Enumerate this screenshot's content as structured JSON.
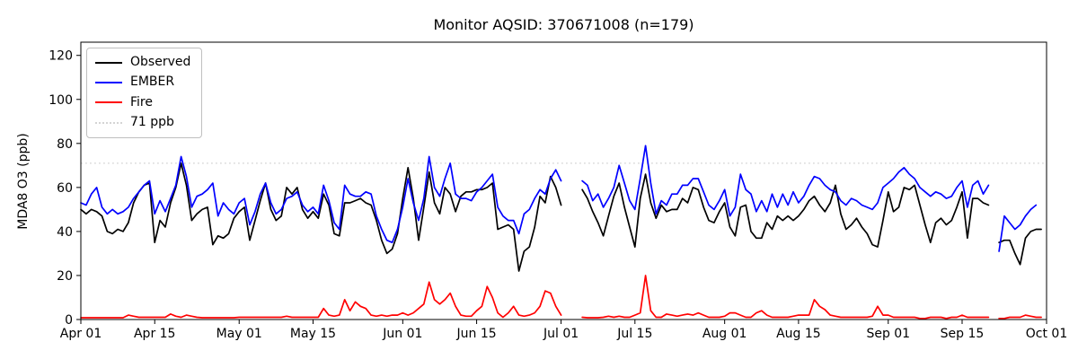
{
  "chart_data": {
    "type": "line",
    "title": "Monitor AQSID: 370671008 (n=179)",
    "ylabel": "MDA8 O3 (ppb)",
    "xlabel": "",
    "grid": false,
    "legend_position": "upper left",
    "ylim": [
      0,
      126
    ],
    "y_ticks": [
      0,
      20,
      40,
      60,
      80,
      100,
      120
    ],
    "x_start_label": "Apr 01",
    "x_end_label": "Oct 01",
    "days_total": 183,
    "x_ticks": [
      {
        "day": 0,
        "label": "Apr 01"
      },
      {
        "day": 14,
        "label": "Apr 15"
      },
      {
        "day": 30,
        "label": "May 01"
      },
      {
        "day": 44,
        "label": "May 15"
      },
      {
        "day": 61,
        "label": "Jun 01"
      },
      {
        "day": 75,
        "label": "Jun 15"
      },
      {
        "day": 91,
        "label": "Jul 01"
      },
      {
        "day": 105,
        "label": "Jul 15"
      },
      {
        "day": 122,
        "label": "Aug 01"
      },
      {
        "day": 136,
        "label": "Aug 15"
      },
      {
        "day": 153,
        "label": "Sep 01"
      },
      {
        "day": 167,
        "label": "Sep 15"
      },
      {
        "day": 183,
        "label": "Oct 01"
      }
    ],
    "threshold": {
      "value": 71,
      "label": "71 ppb",
      "color": "#d4d4d4",
      "style": "dotted"
    },
    "missing_days": [
      "Jul 02",
      "Jul 03",
      "Jul 04",
      "Sep 21"
    ],
    "series": [
      {
        "key": "observed",
        "name": "Observed",
        "color": "#000000",
        "values": [
          50,
          48,
          50,
          49,
          47,
          40,
          39,
          41,
          40,
          44,
          53,
          58,
          61,
          62,
          35,
          45,
          42,
          53,
          60,
          71,
          61,
          45,
          48,
          50,
          51,
          34,
          38,
          37,
          39,
          46,
          49,
          51,
          36,
          45,
          54,
          62,
          50,
          45,
          47,
          60,
          57,
          60,
          50,
          46,
          49,
          46,
          57,
          52,
          39,
          38,
          53,
          53,
          54,
          55,
          53,
          52,
          45,
          36,
          30,
          32,
          39,
          55,
          69,
          55,
          36,
          51,
          67,
          53,
          48,
          60,
          57,
          49,
          56,
          58,
          58,
          59,
          59,
          60,
          62,
          41,
          42,
          43,
          41,
          22,
          31,
          33,
          42,
          56,
          53,
          65,
          60,
          52,
          null,
          null,
          null,
          59,
          55,
          49,
          44,
          38,
          47,
          56,
          62,
          51,
          42,
          33,
          55,
          66,
          53,
          46,
          52,
          49,
          50,
          50,
          55,
          53,
          60,
          59,
          51,
          45,
          44,
          49,
          53,
          42,
          38,
          51,
          52,
          40,
          37,
          37,
          44,
          41,
          47,
          45,
          47,
          45,
          47,
          50,
          54,
          56,
          52,
          49,
          53,
          61,
          48,
          41,
          43,
          46,
          42,
          39,
          34,
          33,
          45,
          58,
          49,
          51,
          60,
          59,
          61,
          52,
          43,
          35,
          44,
          46,
          43,
          45,
          51,
          58,
          37,
          55,
          55,
          53,
          52,
          null,
          35,
          36,
          36,
          30,
          25,
          37,
          40,
          41,
          41
        ]
      },
      {
        "key": "ember",
        "name": "EMBER",
        "color": "#0000ff",
        "values": [
          53,
          52,
          57,
          60,
          51,
          48,
          50,
          48,
          49,
          51,
          55,
          58,
          61,
          63,
          48,
          54,
          49,
          55,
          61,
          74,
          65,
          51,
          56,
          57,
          59,
          62,
          47,
          53,
          50,
          48,
          53,
          55,
          43,
          49,
          57,
          62,
          53,
          48,
          50,
          55,
          56,
          58,
          52,
          49,
          51,
          48,
          61,
          54,
          44,
          41,
          61,
          57,
          56,
          56,
          58,
          57,
          47,
          41,
          36,
          35,
          41,
          51,
          64,
          53,
          45,
          55,
          74,
          60,
          56,
          64,
          71,
          57,
          55,
          55,
          54,
          58,
          60,
          63,
          66,
          51,
          47,
          45,
          45,
          39,
          48,
          50,
          55,
          59,
          57,
          64,
          68,
          63,
          null,
          null,
          null,
          63,
          61,
          54,
          57,
          51,
          55,
          60,
          70,
          62,
          54,
          50,
          64,
          79,
          62,
          48,
          54,
          52,
          57,
          57,
          61,
          61,
          64,
          64,
          58,
          52,
          50,
          54,
          59,
          47,
          51,
          66,
          59,
          57,
          49,
          54,
          49,
          57,
          51,
          57,
          52,
          58,
          53,
          56,
          61,
          65,
          64,
          61,
          59,
          58,
          54,
          52,
          55,
          54,
          52,
          51,
          50,
          53,
          60,
          62,
          64,
          67,
          69,
          66,
          64,
          60,
          58,
          56,
          58,
          57,
          55,
          56,
          60,
          63,
          51,
          61,
          63,
          57,
          61,
          null,
          31,
          47,
          44,
          41,
          43,
          47,
          50,
          52,
          null
        ]
      },
      {
        "key": "fire",
        "name": "Fire",
        "color": "#ff0000",
        "values": [
          0.8,
          0.8,
          0.8,
          0.8,
          0.8,
          0.8,
          0.8,
          0.8,
          0.8,
          2,
          1.5,
          1,
          1,
          1,
          1,
          1,
          1,
          2.5,
          1.5,
          1,
          2,
          1.5,
          1,
          0.8,
          0.8,
          0.8,
          0.8,
          0.8,
          0.8,
          0.8,
          1,
          1,
          1,
          1,
          1,
          1,
          1,
          1,
          1,
          1.5,
          1,
          1,
          1,
          1,
          1,
          1,
          5,
          2,
          1.5,
          2,
          9,
          4,
          8,
          6,
          5,
          2,
          1.5,
          2,
          1.5,
          2,
          2,
          3,
          2,
          3,
          5,
          7,
          17,
          9,
          7,
          9,
          12,
          6,
          2,
          1.5,
          1.5,
          4,
          6,
          15,
          10,
          3,
          1,
          3,
          6,
          2,
          1.5,
          2,
          3,
          6,
          13,
          12,
          6,
          2,
          null,
          null,
          null,
          1,
          0.8,
          0.8,
          0.8,
          1,
          1.5,
          1,
          1.5,
          1,
          1,
          2,
          3,
          20,
          4,
          1,
          1,
          2.5,
          2,
          1.5,
          2,
          2.5,
          2,
          3,
          2,
          1,
          1,
          1,
          1.5,
          3,
          3,
          2,
          1,
          1,
          3,
          4,
          2,
          1,
          1,
          1,
          1,
          1.5,
          2,
          2,
          2,
          9,
          6,
          4.5,
          2,
          1.5,
          1,
          1,
          1,
          1,
          1,
          1,
          1.5,
          6,
          2,
          2,
          1,
          1,
          1,
          1,
          1,
          0.5,
          0.5,
          1,
          1,
          1,
          0.5,
          1,
          1,
          2,
          1,
          1,
          1,
          1,
          1,
          null,
          0.5,
          0.5,
          1,
          1,
          1,
          2,
          1.5,
          1,
          1
        ]
      }
    ]
  },
  "legend": {
    "items": [
      {
        "key": "observed",
        "label": "Observed"
      },
      {
        "key": "ember",
        "label": "EMBER"
      },
      {
        "key": "fire",
        "label": "Fire"
      },
      {
        "key": "threshold",
        "label": "71 ppb"
      }
    ]
  },
  "colors": {
    "observed": "#000000",
    "ember": "#0000ff",
    "fire": "#ff0000",
    "threshold": "#d4d4d4",
    "background": "#ffffff",
    "axis": "#000000"
  }
}
